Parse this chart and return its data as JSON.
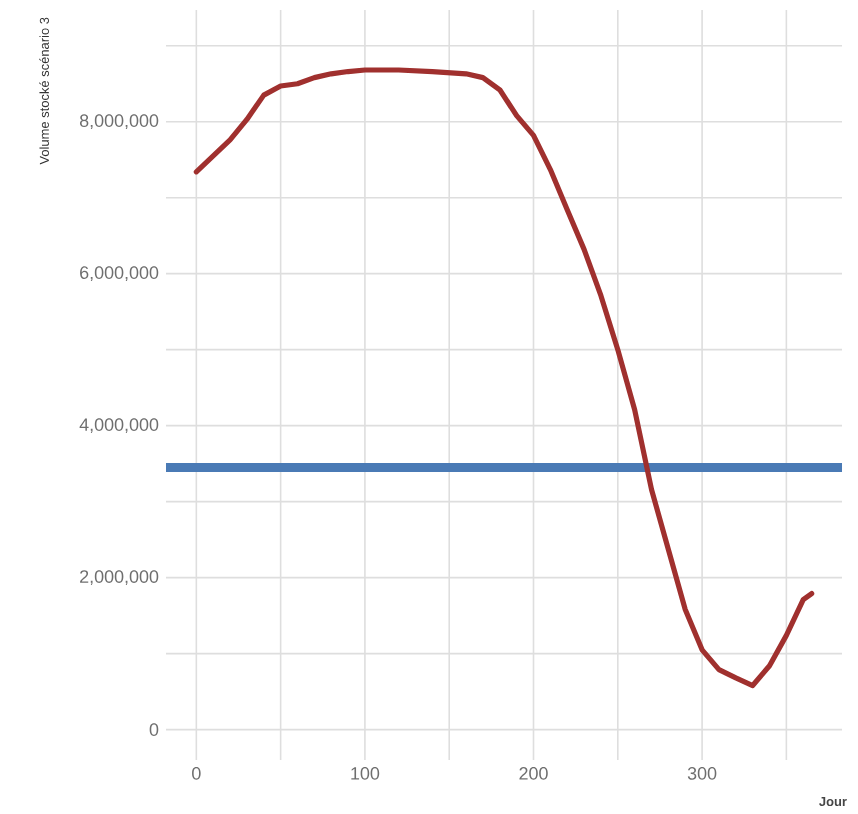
{
  "chart_data": {
    "type": "line",
    "xlabel": "Jour",
    "ylabel": "Volume stocké scénario 3",
    "x": [
      0,
      10,
      20,
      30,
      40,
      50,
      60,
      70,
      80,
      90,
      100,
      120,
      140,
      160,
      170,
      180,
      190,
      200,
      210,
      220,
      230,
      240,
      250,
      260,
      270,
      280,
      290,
      300,
      310,
      320,
      330,
      340,
      350,
      360,
      365
    ],
    "series": [
      {
        "color": "#a0302e",
        "values": [
          7340000,
          7550000,
          7760000,
          8030000,
          8350000,
          8470000,
          8500000,
          8580000,
          8630000,
          8660000,
          8680000,
          8680000,
          8660000,
          8630000,
          8580000,
          8420000,
          8080000,
          7820000,
          7370000,
          6840000,
          6320000,
          5710000,
          5000000,
          4210000,
          3160000,
          2370000,
          1580000,
          1050000,
          790000,
          680000,
          580000,
          840000,
          1240000,
          1710000,
          1790000
        ]
      }
    ],
    "xlim": [
      -18,
      383
    ],
    "ylim": [
      -400000,
      9470000
    ],
    "xticks": [
      0,
      {
        "value": 50,
        "label": null
      },
      100,
      {
        "value": 150,
        "label": null
      },
      200,
      {
        "value": 250,
        "label": null
      },
      300,
      {
        "value": 350,
        "label": null
      }
    ],
    "yticks": [
      0,
      {
        "value": 1000000,
        "label": null
      },
      {
        "value": 2000000,
        "label": "2,000,000"
      },
      {
        "value": 3000000,
        "label": null
      },
      {
        "value": 4000000,
        "label": "4,000,000"
      },
      {
        "value": 5000000,
        "label": null
      },
      {
        "value": 6000000,
        "label": "6,000,000"
      },
      {
        "value": 7000000,
        "label": null
      },
      {
        "value": 8000000,
        "label": "8,000,000"
      },
      {
        "value": 9000000,
        "label": null
      }
    ],
    "grid": true,
    "marker": "none",
    "line_style": "solid",
    "ref_lines": [
      {
        "axis": "y",
        "value": 3450000,
        "color": "#4a7ab5",
        "line_style": "solid"
      }
    ]
  }
}
